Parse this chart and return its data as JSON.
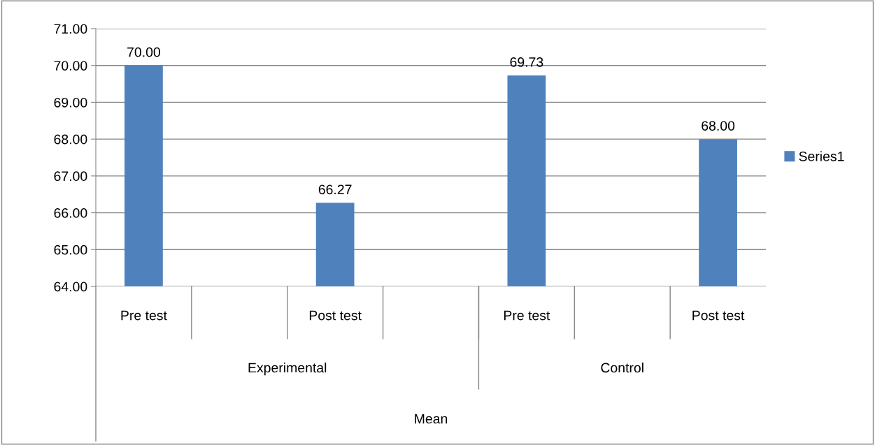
{
  "chart_data": {
    "type": "bar",
    "categories": [
      "Pre test",
      null,
      "Post test",
      null,
      "Pre test",
      null,
      "Post test"
    ],
    "series": [
      {
        "name": "Series1",
        "color": "#4f81bd",
        "values": [
          70.0,
          null,
          66.27,
          null,
          69.73,
          null,
          68.0
        ],
        "value_labels": [
          "70.00",
          null,
          "66.27",
          null,
          "69.73",
          null,
          "68.00"
        ]
      }
    ],
    "ylim": [
      64,
      71
    ],
    "yticks": [
      {
        "value": 64,
        "label": "64.00"
      },
      {
        "value": 65,
        "label": "65.00"
      },
      {
        "value": 66,
        "label": "66.00"
      },
      {
        "value": 67,
        "label": "67.00"
      },
      {
        "value": 68,
        "label": "68.00"
      },
      {
        "value": 69,
        "label": "69.00"
      },
      {
        "value": 70,
        "label": "70.00"
      },
      {
        "value": 71,
        "label": "71.00"
      }
    ],
    "annotations": [
      "Experimental",
      "Control",
      "Mean"
    ],
    "grid": "y",
    "legend": "right"
  }
}
